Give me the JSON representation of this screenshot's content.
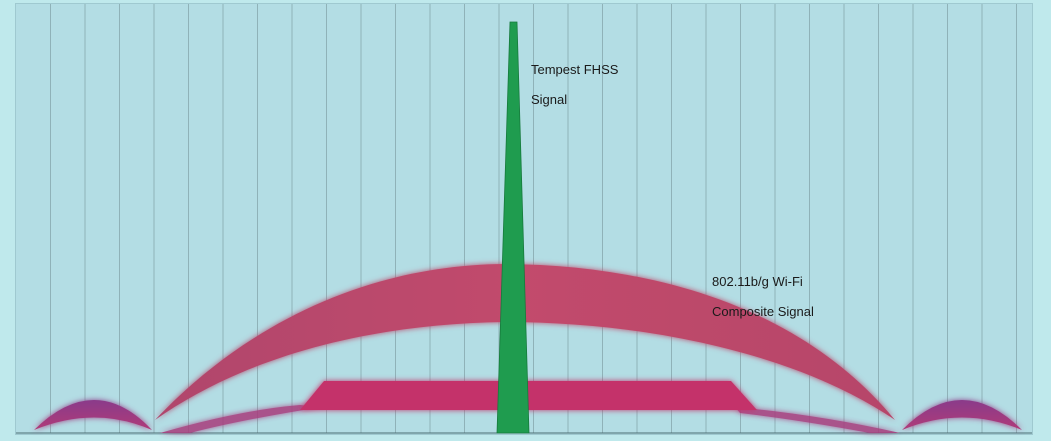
{
  "labels": {
    "fhss_line1": "Tempest FHSS",
    "fhss_line2": "Signal",
    "wifi_line1": "802.11b/g Wi-Fi",
    "wifi_line2": "Composite Signal"
  },
  "colors": {
    "background": "#b3dde4",
    "gridline": "#8fb2b8",
    "wifi_arc": "#c24b6c",
    "wifi_band": "#c4336a",
    "side_lobes": "#9a3a86",
    "fhss": "#1f9c4f"
  },
  "icons": [
    "fhss-spike",
    "wifi-composite-arc",
    "wifi-data-band",
    "side-lobes"
  ]
}
